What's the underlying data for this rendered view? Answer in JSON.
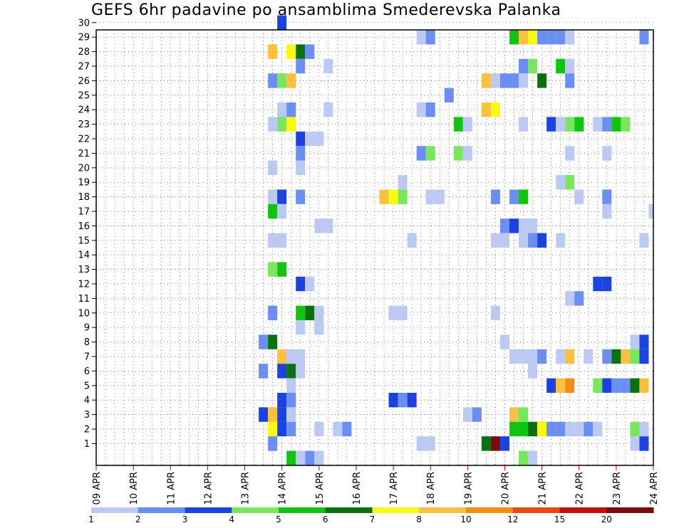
{
  "chart_data": {
    "type": "heatmap",
    "title": "GEFS 6hr padavine po ansamblima Smederevska Palanka",
    "x_axis": {
      "type": "date",
      "range": [
        "09 APR",
        "24 APR"
      ],
      "steps_per_day": 4,
      "tick_labels": [
        "09 APR",
        "10 APR",
        "11 APR",
        "12 APR",
        "13 APR",
        "14 APR",
        "15 APR",
        "16 APR",
        "17 APR",
        "18 APR",
        "19 APR",
        "20 APR",
        "21 APR",
        "22 APR",
        "23 APR",
        "24 APR"
      ]
    },
    "y_axis": {
      "tick_labels": [
        "1",
        "2",
        "3",
        "4",
        "5",
        "6",
        "7",
        "8",
        "9",
        "10",
        "11",
        "12",
        "13",
        "14",
        "15",
        "16",
        "17",
        "18",
        "19",
        "20",
        "21",
        "22",
        "23",
        "24",
        "25",
        "26",
        "27",
        "28",
        "29",
        "30"
      ],
      "range": [
        0,
        30
      ]
    },
    "grid": true,
    "legend": {
      "placement": "bottom",
      "labels": [
        "1",
        "2",
        "3",
        "4",
        "5",
        "6",
        "7",
        "8",
        "10",
        "12",
        "15",
        "20"
      ],
      "colors": [
        "#bcc9f3",
        "#6a8ff0",
        "#1c43e0",
        "#7ae660",
        "#12c412",
        "#0a7010",
        "#fafa10",
        "#fac040",
        "#f58c14",
        "#e84a0f",
        "#c21010",
        "#780d0d"
      ]
    },
    "cells": [
      {
        "m": 30,
        "d": "14 APR",
        "h": 0,
        "c": 3
      },
      {
        "m": 29,
        "d": "17 APR",
        "h": 18,
        "c": 1
      },
      {
        "m": 29,
        "d": "18 APR",
        "h": 0,
        "c": 2
      },
      {
        "m": 29,
        "d": "20 APR",
        "h": 6,
        "c": 5
      },
      {
        "m": 29,
        "d": "20 APR",
        "h": 12,
        "c": 8
      },
      {
        "m": 29,
        "d": "20 APR",
        "h": 18,
        "c": 7
      },
      {
        "m": 29,
        "d": "21 APR",
        "h": 0,
        "c": 2
      },
      {
        "m": 29,
        "d": "21 APR",
        "h": 6,
        "c": 2
      },
      {
        "m": 29,
        "d": "21 APR",
        "h": 12,
        "c": 2
      },
      {
        "m": 29,
        "d": "21 APR",
        "h": 18,
        "c": 1
      },
      {
        "m": 29,
        "d": "23 APR",
        "h": 18,
        "c": 2
      },
      {
        "m": 28,
        "d": "13 APR",
        "h": 18,
        "c": 8
      },
      {
        "m": 28,
        "d": "14 APR",
        "h": 6,
        "c": 7
      },
      {
        "m": 28,
        "d": "14 APR",
        "h": 12,
        "c": 6
      },
      {
        "m": 28,
        "d": "14 APR",
        "h": 18,
        "c": 2
      },
      {
        "m": 27,
        "d": "14 APR",
        "h": 12,
        "c": 2
      },
      {
        "m": 27,
        "d": "15 APR",
        "h": 6,
        "c": 1
      },
      {
        "m": 27,
        "d": "20 APR",
        "h": 12,
        "c": 2
      },
      {
        "m": 27,
        "d": "20 APR",
        "h": 18,
        "c": 4
      },
      {
        "m": 27,
        "d": "21 APR",
        "h": 12,
        "c": 5
      },
      {
        "m": 27,
        "d": "21 APR",
        "h": 18,
        "c": 1
      },
      {
        "m": 26,
        "d": "13 APR",
        "h": 18,
        "c": 2
      },
      {
        "m": 26,
        "d": "14 APR",
        "h": 0,
        "c": 4
      },
      {
        "m": 26,
        "d": "14 APR",
        "h": 6,
        "c": 8
      },
      {
        "m": 26,
        "d": "19 APR",
        "h": 12,
        "c": 8
      },
      {
        "m": 26,
        "d": "19 APR",
        "h": 18,
        "c": 1
      },
      {
        "m": 26,
        "d": "20 APR",
        "h": 0,
        "c": 2
      },
      {
        "m": 26,
        "d": "20 APR",
        "h": 6,
        "c": 2
      },
      {
        "m": 26,
        "d": "20 APR",
        "h": 12,
        "c": 1
      },
      {
        "m": 26,
        "d": "21 APR",
        "h": 0,
        "c": 6
      },
      {
        "m": 26,
        "d": "21 APR",
        "h": 18,
        "c": 2
      },
      {
        "m": 25,
        "d": "18 APR",
        "h": 12,
        "c": 2
      },
      {
        "m": 24,
        "d": "14 APR",
        "h": 0,
        "c": 1
      },
      {
        "m": 24,
        "d": "14 APR",
        "h": 6,
        "c": 2
      },
      {
        "m": 24,
        "d": "15 APR",
        "h": 6,
        "c": 1
      },
      {
        "m": 24,
        "d": "17 APR",
        "h": 18,
        "c": 1
      },
      {
        "m": 24,
        "d": "18 APR",
        "h": 0,
        "c": 2
      },
      {
        "m": 24,
        "d": "19 APR",
        "h": 12,
        "c": 8
      },
      {
        "m": 24,
        "d": "19 APR",
        "h": 18,
        "c": 7
      },
      {
        "m": 23,
        "d": "13 APR",
        "h": 18,
        "c": 1
      },
      {
        "m": 23,
        "d": "14 APR",
        "h": 0,
        "c": 4
      },
      {
        "m": 23,
        "d": "14 APR",
        "h": 6,
        "c": 7
      },
      {
        "m": 23,
        "d": "18 APR",
        "h": 18,
        "c": 5
      },
      {
        "m": 23,
        "d": "19 APR",
        "h": 0,
        "c": 1
      },
      {
        "m": 23,
        "d": "20 APR",
        "h": 12,
        "c": 1
      },
      {
        "m": 23,
        "d": "21 APR",
        "h": 6,
        "c": 3
      },
      {
        "m": 23,
        "d": "21 APR",
        "h": 12,
        "c": 1
      },
      {
        "m": 23,
        "d": "21 APR",
        "h": 18,
        "c": 4
      },
      {
        "m": 23,
        "d": "22 APR",
        "h": 0,
        "c": 5
      },
      {
        "m": 23,
        "d": "22 APR",
        "h": 12,
        "c": 1
      },
      {
        "m": 23,
        "d": "22 APR",
        "h": 18,
        "c": 2
      },
      {
        "m": 23,
        "d": "23 APR",
        "h": 0,
        "c": 5
      },
      {
        "m": 23,
        "d": "23 APR",
        "h": 6,
        "c": 4
      },
      {
        "m": 22,
        "d": "14 APR",
        "h": 12,
        "c": 3
      },
      {
        "m": 22,
        "d": "14 APR",
        "h": 18,
        "c": 1
      },
      {
        "m": 22,
        "d": "15 APR",
        "h": 0,
        "c": 1
      },
      {
        "m": 21,
        "d": "14 APR",
        "h": 12,
        "c": 2
      },
      {
        "m": 21,
        "d": "17 APR",
        "h": 18,
        "c": 2
      },
      {
        "m": 21,
        "d": "18 APR",
        "h": 0,
        "c": 4
      },
      {
        "m": 21,
        "d": "18 APR",
        "h": 18,
        "c": 4
      },
      {
        "m": 21,
        "d": "19 APR",
        "h": 0,
        "c": 1
      },
      {
        "m": 21,
        "d": "21 APR",
        "h": 18,
        "c": 1
      },
      {
        "m": 21,
        "d": "22 APR",
        "h": 18,
        "c": 1
      },
      {
        "m": 20,
        "d": "13 APR",
        "h": 18,
        "c": 1
      },
      {
        "m": 20,
        "d": "14 APR",
        "h": 12,
        "c": 1
      },
      {
        "m": 19,
        "d": "17 APR",
        "h": 6,
        "c": 1
      },
      {
        "m": 19,
        "d": "21 APR",
        "h": 12,
        "c": 1
      },
      {
        "m": 19,
        "d": "21 APR",
        "h": 18,
        "c": 4
      },
      {
        "m": 18,
        "d": "13 APR",
        "h": 18,
        "c": 1
      },
      {
        "m": 18,
        "d": "14 APR",
        "h": 0,
        "c": 3
      },
      {
        "m": 18,
        "d": "14 APR",
        "h": 12,
        "c": 2
      },
      {
        "m": 18,
        "d": "16 APR",
        "h": 18,
        "c": 8
      },
      {
        "m": 18,
        "d": "17 APR",
        "h": 0,
        "c": 7
      },
      {
        "m": 18,
        "d": "17 APR",
        "h": 6,
        "c": 4
      },
      {
        "m": 18,
        "d": "18 APR",
        "h": 0,
        "c": 1
      },
      {
        "m": 18,
        "d": "18 APR",
        "h": 6,
        "c": 1
      },
      {
        "m": 18,
        "d": "19 APR",
        "h": 18,
        "c": 2
      },
      {
        "m": 18,
        "d": "20 APR",
        "h": 6,
        "c": 2
      },
      {
        "m": 18,
        "d": "20 APR",
        "h": 12,
        "c": 5
      },
      {
        "m": 18,
        "d": "22 APR",
        "h": 0,
        "c": 1
      },
      {
        "m": 18,
        "d": "22 APR",
        "h": 18,
        "c": 2
      },
      {
        "m": 17,
        "d": "13 APR",
        "h": 18,
        "c": 5
      },
      {
        "m": 17,
        "d": "14 APR",
        "h": 0,
        "c": 1
      },
      {
        "m": 17,
        "d": "22 APR",
        "h": 18,
        "c": 1
      },
      {
        "m": 17,
        "d": "24 APR",
        "h": 0,
        "c": 1
      },
      {
        "m": 16,
        "d": "20 APR",
        "h": 0,
        "c": 2
      },
      {
        "m": 16,
        "d": "20 APR",
        "h": 6,
        "c": 3
      },
      {
        "m": 16,
        "d": "20 APR",
        "h": 12,
        "c": 1
      },
      {
        "m": 16,
        "d": "20 APR",
        "h": 18,
        "c": 1
      },
      {
        "m": 16,
        "d": "15 APR",
        "h": 0,
        "c": 1
      },
      {
        "m": 16,
        "d": "15 APR",
        "h": 6,
        "c": 1
      },
      {
        "m": 15,
        "d": "13 APR",
        "h": 18,
        "c": 1
      },
      {
        "m": 15,
        "d": "14 APR",
        "h": 0,
        "c": 1
      },
      {
        "m": 15,
        "d": "17 APR",
        "h": 12,
        "c": 1
      },
      {
        "m": 15,
        "d": "19 APR",
        "h": 18,
        "c": 1
      },
      {
        "m": 15,
        "d": "20 APR",
        "h": 0,
        "c": 1
      },
      {
        "m": 15,
        "d": "20 APR",
        "h": 12,
        "c": 1
      },
      {
        "m": 15,
        "d": "20 APR",
        "h": 18,
        "c": 2
      },
      {
        "m": 15,
        "d": "21 APR",
        "h": 0,
        "c": 3
      },
      {
        "m": 15,
        "d": "21 APR",
        "h": 12,
        "c": 1
      },
      {
        "m": 15,
        "d": "23 APR",
        "h": 18,
        "c": 1
      },
      {
        "m": 13,
        "d": "13 APR",
        "h": 18,
        "c": 4
      },
      {
        "m": 13,
        "d": "14 APR",
        "h": 0,
        "c": 5
      },
      {
        "m": 12,
        "d": "14 APR",
        "h": 12,
        "c": 3
      },
      {
        "m": 12,
        "d": "14 APR",
        "h": 18,
        "c": 1
      },
      {
        "m": 12,
        "d": "22 APR",
        "h": 12,
        "c": 3
      },
      {
        "m": 12,
        "d": "22 APR",
        "h": 18,
        "c": 3
      },
      {
        "m": 11,
        "d": "21 APR",
        "h": 18,
        "c": 1
      },
      {
        "m": 11,
        "d": "22 APR",
        "h": 0,
        "c": 2
      },
      {
        "m": 10,
        "d": "13 APR",
        "h": 18,
        "c": 2
      },
      {
        "m": 10,
        "d": "14 APR",
        "h": 12,
        "c": 5
      },
      {
        "m": 10,
        "d": "14 APR",
        "h": 18,
        "c": 6
      },
      {
        "m": 10,
        "d": "15 APR",
        "h": 0,
        "c": 1
      },
      {
        "m": 10,
        "d": "17 APR",
        "h": 0,
        "c": 1
      },
      {
        "m": 10,
        "d": "17 APR",
        "h": 6,
        "c": 1
      },
      {
        "m": 10,
        "d": "19 APR",
        "h": 18,
        "c": 1
      },
      {
        "m": 9,
        "d": "14 APR",
        "h": 12,
        "c": 1
      },
      {
        "m": 9,
        "d": "15 APR",
        "h": 0,
        "c": 1
      },
      {
        "m": 8,
        "d": "13 APR",
        "h": 12,
        "c": 2
      },
      {
        "m": 8,
        "d": "13 APR",
        "h": 18,
        "c": 6
      },
      {
        "m": 8,
        "d": "20 APR",
        "h": 0,
        "c": 1
      },
      {
        "m": 8,
        "d": "23 APR",
        "h": 12,
        "c": 1
      },
      {
        "m": 8,
        "d": "23 APR",
        "h": 18,
        "c": 3
      },
      {
        "m": 7,
        "d": "14 APR",
        "h": 0,
        "c": 8
      },
      {
        "m": 7,
        "d": "14 APR",
        "h": 6,
        "c": 1
      },
      {
        "m": 7,
        "d": "14 APR",
        "h": 12,
        "c": 1
      },
      {
        "m": 7,
        "d": "20 APR",
        "h": 6,
        "c": 1
      },
      {
        "m": 7,
        "d": "20 APR",
        "h": 12,
        "c": 1
      },
      {
        "m": 7,
        "d": "20 APR",
        "h": 18,
        "c": 1
      },
      {
        "m": 7,
        "d": "21 APR",
        "h": 0,
        "c": 2
      },
      {
        "m": 7,
        "d": "21 APR",
        "h": 12,
        "c": 1
      },
      {
        "m": 7,
        "d": "21 APR",
        "h": 18,
        "c": 8
      },
      {
        "m": 7,
        "d": "22 APR",
        "h": 6,
        "c": 1
      },
      {
        "m": 7,
        "d": "22 APR",
        "h": 18,
        "c": 2
      },
      {
        "m": 7,
        "d": "23 APR",
        "h": 0,
        "c": 6
      },
      {
        "m": 7,
        "d": "23 APR",
        "h": 6,
        "c": 8
      },
      {
        "m": 7,
        "d": "23 APR",
        "h": 12,
        "c": 4
      },
      {
        "m": 7,
        "d": "23 APR",
        "h": 18,
        "c": 3
      },
      {
        "m": 6,
        "d": "13 APR",
        "h": 12,
        "c": 2
      },
      {
        "m": 6,
        "d": "14 APR",
        "h": 0,
        "c": 3
      },
      {
        "m": 6,
        "d": "14 APR",
        "h": 6,
        "c": 6
      },
      {
        "m": 6,
        "d": "14 APR",
        "h": 12,
        "c": 1
      },
      {
        "m": 6,
        "d": "20 APR",
        "h": 18,
        "c": 1
      },
      {
        "m": 5,
        "d": "14 APR",
        "h": 6,
        "c": 1
      },
      {
        "m": 5,
        "d": "21 APR",
        "h": 6,
        "c": 3
      },
      {
        "m": 5,
        "d": "21 APR",
        "h": 12,
        "c": 8
      },
      {
        "m": 5,
        "d": "21 APR",
        "h": 18,
        "c": 9
      },
      {
        "m": 5,
        "d": "22 APR",
        "h": 12,
        "c": 4
      },
      {
        "m": 5,
        "d": "22 APR",
        "h": 18,
        "c": 3
      },
      {
        "m": 5,
        "d": "23 APR",
        "h": 0,
        "c": 2
      },
      {
        "m": 5,
        "d": "23 APR",
        "h": 6,
        "c": 2
      },
      {
        "m": 5,
        "d": "23 APR",
        "h": 12,
        "c": 6
      },
      {
        "m": 5,
        "d": "23 APR",
        "h": 18,
        "c": 8
      },
      {
        "m": 4,
        "d": "14 APR",
        "h": 0,
        "c": 3
      },
      {
        "m": 4,
        "d": "14 APR",
        "h": 6,
        "c": 2
      },
      {
        "m": 4,
        "d": "17 APR",
        "h": 0,
        "c": 3
      },
      {
        "m": 4,
        "d": "17 APR",
        "h": 6,
        "c": 2
      },
      {
        "m": 4,
        "d": "17 APR",
        "h": 12,
        "c": 3
      },
      {
        "m": 3,
        "d": "13 APR",
        "h": 12,
        "c": 3
      },
      {
        "m": 3,
        "d": "13 APR",
        "h": 18,
        "c": 8
      },
      {
        "m": 3,
        "d": "14 APR",
        "h": 0,
        "c": 3
      },
      {
        "m": 3,
        "d": "14 APR",
        "h": 6,
        "c": 1
      },
      {
        "m": 3,
        "d": "19 APR",
        "h": 0,
        "c": 1
      },
      {
        "m": 3,
        "d": "19 APR",
        "h": 6,
        "c": 2
      },
      {
        "m": 3,
        "d": "20 APR",
        "h": 6,
        "c": 8
      },
      {
        "m": 3,
        "d": "20 APR",
        "h": 12,
        "c": 4
      },
      {
        "m": 2,
        "d": "13 APR",
        "h": 18,
        "c": 7
      },
      {
        "m": 2,
        "d": "14 APR",
        "h": 0,
        "c": 3
      },
      {
        "m": 2,
        "d": "14 APR",
        "h": 6,
        "c": 2
      },
      {
        "m": 2,
        "d": "15 APR",
        "h": 0,
        "c": 1
      },
      {
        "m": 2,
        "d": "15 APR",
        "h": 12,
        "c": 1
      },
      {
        "m": 2,
        "d": "15 APR",
        "h": 18,
        "c": 2
      },
      {
        "m": 2,
        "d": "20 APR",
        "h": 6,
        "c": 5
      },
      {
        "m": 2,
        "d": "20 APR",
        "h": 12,
        "c": 5
      },
      {
        "m": 2,
        "d": "20 APR",
        "h": 18,
        "c": 6
      },
      {
        "m": 2,
        "d": "21 APR",
        "h": 0,
        "c": 7
      },
      {
        "m": 2,
        "d": "21 APR",
        "h": 6,
        "c": 2
      },
      {
        "m": 2,
        "d": "21 APR",
        "h": 12,
        "c": 2
      },
      {
        "m": 2,
        "d": "21 APR",
        "h": 18,
        "c": 1
      },
      {
        "m": 2,
        "d": "22 APR",
        "h": 0,
        "c": 1
      },
      {
        "m": 2,
        "d": "22 APR",
        "h": 6,
        "c": 2
      },
      {
        "m": 2,
        "d": "22 APR",
        "h": 12,
        "c": 1
      },
      {
        "m": 2,
        "d": "23 APR",
        "h": 12,
        "c": 4
      },
      {
        "m": 2,
        "d": "23 APR",
        "h": 18,
        "c": 1
      },
      {
        "m": 1,
        "d": "13 APR",
        "h": 18,
        "c": 2
      },
      {
        "m": 1,
        "d": "17 APR",
        "h": 18,
        "c": 1
      },
      {
        "m": 1,
        "d": "18 APR",
        "h": 0,
        "c": 1
      },
      {
        "m": 1,
        "d": "19 APR",
        "h": 12,
        "c": 6
      },
      {
        "m": 1,
        "d": "19 APR",
        "h": 18,
        "c": 12
      },
      {
        "m": 1,
        "d": "20 APR",
        "h": 0,
        "c": 3
      },
      {
        "m": 1,
        "d": "23 APR",
        "h": 12,
        "c": 1
      },
      {
        "m": 1,
        "d": "23 APR",
        "h": 18,
        "c": 3
      },
      {
        "m": 0,
        "d": "14 APR",
        "h": 6,
        "c": 5
      },
      {
        "m": 0,
        "d": "14 APR",
        "h": 12,
        "c": 1
      },
      {
        "m": 0,
        "d": "14 APR",
        "h": 18,
        "c": 2
      },
      {
        "m": 0,
        "d": "15 APR",
        "h": 0,
        "c": 1
      },
      {
        "m": 0,
        "d": "20 APR",
        "h": 12,
        "c": 4
      },
      {
        "m": 0,
        "d": "20 APR",
        "h": 18,
        "c": 1
      }
    ]
  }
}
